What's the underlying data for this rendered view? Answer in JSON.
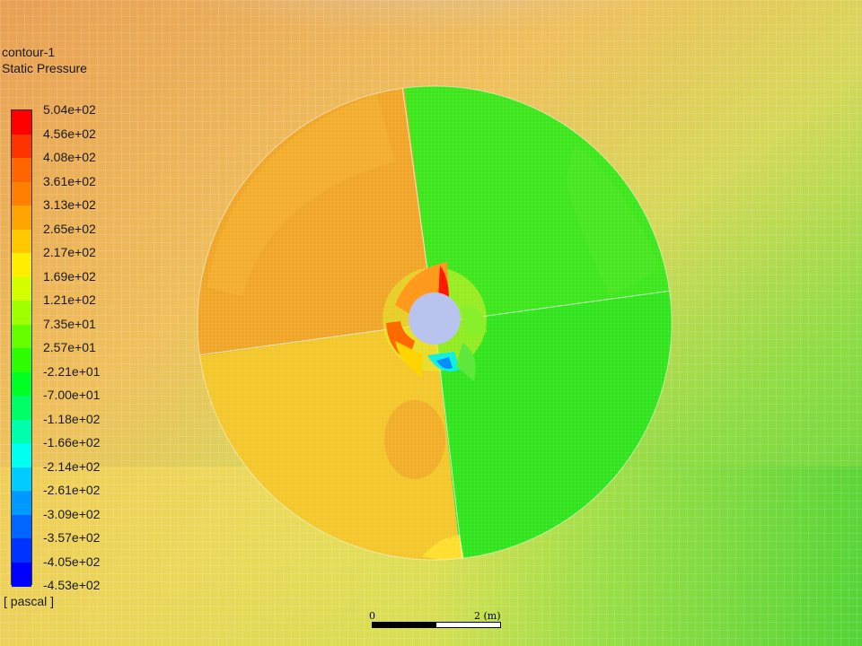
{
  "plot": {
    "name": "contour-1",
    "variable": "Static Pressure",
    "units": "[ pascal ]"
  },
  "legend": {
    "colors": [
      "#ff0000",
      "#ff3300",
      "#ff6600",
      "#ff8000",
      "#ffa500",
      "#ffc800",
      "#ffee00",
      "#d4ff00",
      "#a0ff00",
      "#66ff00",
      "#2eff00",
      "#00ff22",
      "#00ff66",
      "#00ffaa",
      "#00ffee",
      "#00ccff",
      "#0099ff",
      "#0066ff",
      "#0033ff",
      "#0000ff"
    ],
    "labels": [
      "5.04e+02",
      "4.56e+02",
      "4.08e+02",
      "3.61e+02",
      "3.13e+02",
      "2.65e+02",
      "2.17e+02",
      "1.69e+02",
      "1.21e+02",
      "7.35e+01",
      "2.57e+01",
      "-2.21e+01",
      "-7.00e+01",
      "-1.18e+02",
      "-1.66e+02",
      "-2.14e+02",
      "-2.61e+02",
      "-3.09e+02",
      "-3.57e+02",
      "-4.05e+02",
      "-4.53e+02"
    ]
  },
  "scale": {
    "start_label": "0",
    "end_label": "2 (m)"
  },
  "colors": {
    "hub": "#b8c4ee",
    "mesh_line": "#ffffff",
    "high_zone": "#f0a526",
    "mid_zone": "#f3c629",
    "low_zone": "#3ae818",
    "far_green": "#5fd23a",
    "far_orange": "#e8a055"
  }
}
